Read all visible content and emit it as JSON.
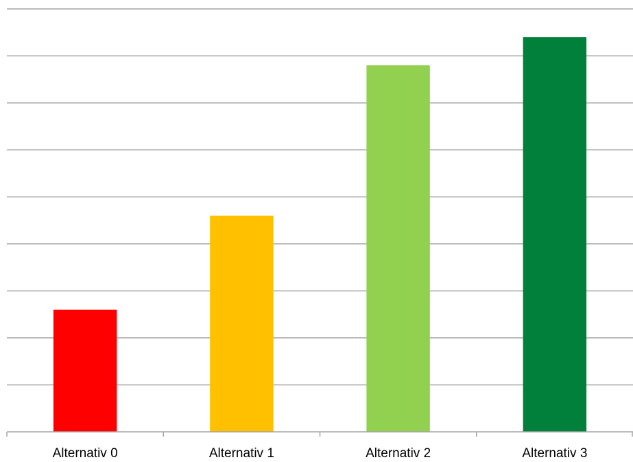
{
  "chart_data": {
    "type": "bar",
    "categories": [
      "Alternativ 0",
      "Alternativ 1",
      "Alternativ 2",
      "Alternativ 3"
    ],
    "values": [
      2.6,
      4.6,
      7.8,
      8.4
    ],
    "colors": [
      "#ff0000",
      "#ffc000",
      "#92d050",
      "#00803a"
    ],
    "ylim": [
      0,
      9
    ],
    "grid_step": 1,
    "grid": true,
    "title": "",
    "xlabel": "",
    "ylabel": ""
  }
}
